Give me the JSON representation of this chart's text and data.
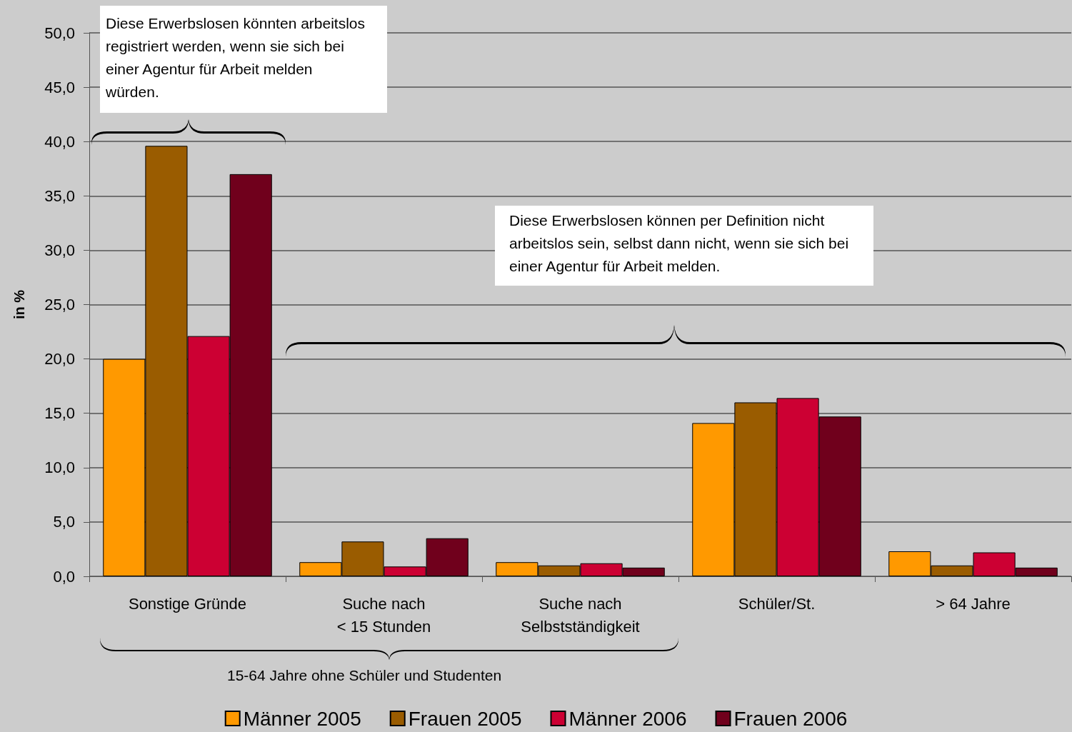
{
  "chart_data": {
    "type": "bar",
    "ylabel": "in %",
    "categories": [
      "Sonstige Gründe",
      "Suche nach\n< 15 Stunden",
      "Suche nach\nSelbstständigkeit",
      "Schüler/St.",
      "> 64 Jahre"
    ],
    "series": [
      {
        "name": "Männer 2005",
        "color": "#ff9900",
        "values": [
          20.0,
          1.3,
          1.3,
          14.1,
          2.3
        ]
      },
      {
        "name": "Frauen 2005",
        "color": "#9a5c00",
        "values": [
          39.6,
          3.2,
          1.0,
          16.0,
          1.0
        ]
      },
      {
        "name": "Männer 2006",
        "color": "#cc0033",
        "values": [
          22.1,
          0.9,
          1.2,
          16.4,
          2.2
        ]
      },
      {
        "name": "Frauen 2006",
        "color": "#70001c",
        "values": [
          37.0,
          3.5,
          0.8,
          14.7,
          0.8
        ]
      }
    ],
    "ylim": [
      0,
      50
    ],
    "yticks": [
      {
        "value": 0,
        "label": "0,0"
      },
      {
        "value": 5,
        "label": "5,0"
      },
      {
        "value": 10,
        "label": "10,0"
      },
      {
        "value": 15,
        "label": "15,0"
      },
      {
        "value": 20,
        "label": "20,0"
      },
      {
        "value": 25,
        "label": "25,0"
      },
      {
        "value": 30,
        "label": "30,0"
      },
      {
        "value": 35,
        "label": "35,0"
      },
      {
        "value": 40,
        "label": "40,0"
      },
      {
        "value": 45,
        "label": "45,0"
      },
      {
        "value": 50,
        "label": "50,0"
      }
    ],
    "grid": "y",
    "legend": "bottom",
    "annotations": [
      "Diese Erwerbslosen könnten arbeitslos registriert werden, wenn sie sich bei einer Agentur für Arbeit melden würden.",
      "Diese Erwerbslosen können per Definition nicht arbeitslos sein, selbst dann nicht, wenn sie sich bei einer Agentur für Arbeit melden.",
      "15-64 Jahre ohne Schüler und Studenten"
    ]
  }
}
